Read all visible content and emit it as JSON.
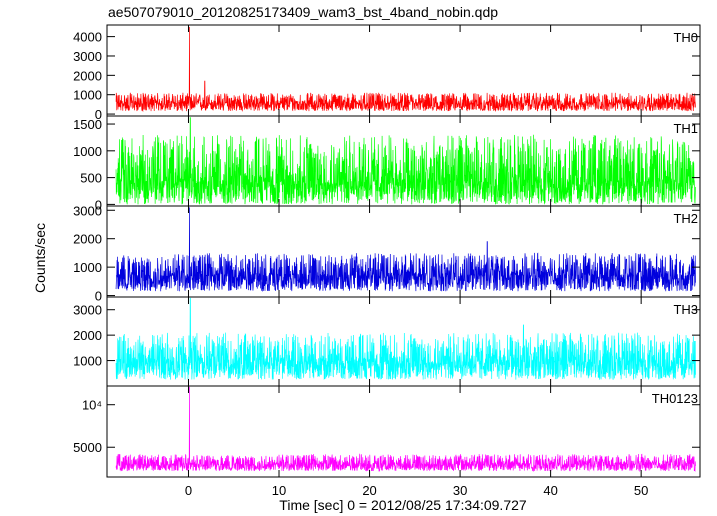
{
  "title": "ae507079010_20120825173409_wam3_bst_4band_nobin.qdp",
  "ylabel": "Counts/sec",
  "xlabel": "Time [sec] 0 = 2012/08/25 17:34:09.727",
  "chart_data": {
    "type": "line",
    "xlim": [
      -9,
      56.5
    ],
    "x_ticks": [
      {
        "value": 0,
        "label": "0"
      },
      {
        "value": 10,
        "label": "10"
      },
      {
        "value": 20,
        "label": "20"
      },
      {
        "value": 30,
        "label": "30"
      },
      {
        "value": 40,
        "label": "40"
      },
      {
        "value": 50,
        "label": "50"
      }
    ],
    "x_data_range": [
      -8,
      56
    ],
    "panels": [
      {
        "name": "TH0",
        "color": "#ff0000",
        "ylim": [
          -100,
          4600
        ],
        "y_ticks": [
          {
            "value": 0,
            "label": "0"
          },
          {
            "value": 1000,
            "label": "1000"
          },
          {
            "value": 2000,
            "label": "2000"
          },
          {
            "value": 3000,
            "label": "3000"
          },
          {
            "value": 4000,
            "label": "4000"
          }
        ],
        "baseline_mean": 550,
        "noise_range": [
          150,
          1100
        ],
        "peaks": [
          {
            "x": 0.1,
            "y": 4500
          },
          {
            "x": 1.8,
            "y": 1700
          }
        ]
      },
      {
        "name": "TH1",
        "color": "#00ff00",
        "ylim": [
          -30,
          1650
        ],
        "y_ticks": [
          {
            "value": 0,
            "label": "0"
          },
          {
            "value": 500,
            "label": "500"
          },
          {
            "value": 1000,
            "label": "1000"
          },
          {
            "value": 1500,
            "label": "1500"
          }
        ],
        "baseline_mean": 420,
        "noise_range": [
          0,
          1300
        ],
        "peaks": [
          {
            "x": 0.2,
            "y": 1620
          }
        ]
      },
      {
        "name": "TH2",
        "color": "#0000dd",
        "ylim": [
          -50,
          3150
        ],
        "y_ticks": [
          {
            "value": 0,
            "label": "0"
          },
          {
            "value": 1000,
            "label": "1000"
          },
          {
            "value": 2000,
            "label": "2000"
          },
          {
            "value": 3000,
            "label": "3000"
          }
        ],
        "baseline_mean": 700,
        "noise_range": [
          150,
          1500
        ],
        "peaks": [
          {
            "x": 0.1,
            "y": 3100
          },
          {
            "x": 33.0,
            "y": 1900
          }
        ]
      },
      {
        "name": "TH3",
        "color": "#00ffff",
        "ylim": [
          0,
          3500
        ],
        "y_ticks": [
          {
            "value": 1000,
            "label": "1000"
          },
          {
            "value": 2000,
            "label": "2000"
          },
          {
            "value": 3000,
            "label": "3000"
          }
        ],
        "baseline_mean": 950,
        "noise_range": [
          250,
          2100
        ],
        "peaks": [
          {
            "x": 0.2,
            "y": 3450
          },
          {
            "x": 37.0,
            "y": 2400
          }
        ]
      },
      {
        "name": "TH0123",
        "color": "#ff00ff",
        "ylim": [
          1500,
          12200
        ],
        "y_ticks": [
          {
            "value": 5000,
            "label": "5000"
          },
          {
            "value": 10000,
            "label": "10⁴"
          }
        ],
        "baseline_mean": 3000,
        "noise_range": [
          2200,
          4200
        ],
        "peaks": [
          {
            "x": 0.1,
            "y": 12100
          }
        ]
      }
    ]
  }
}
